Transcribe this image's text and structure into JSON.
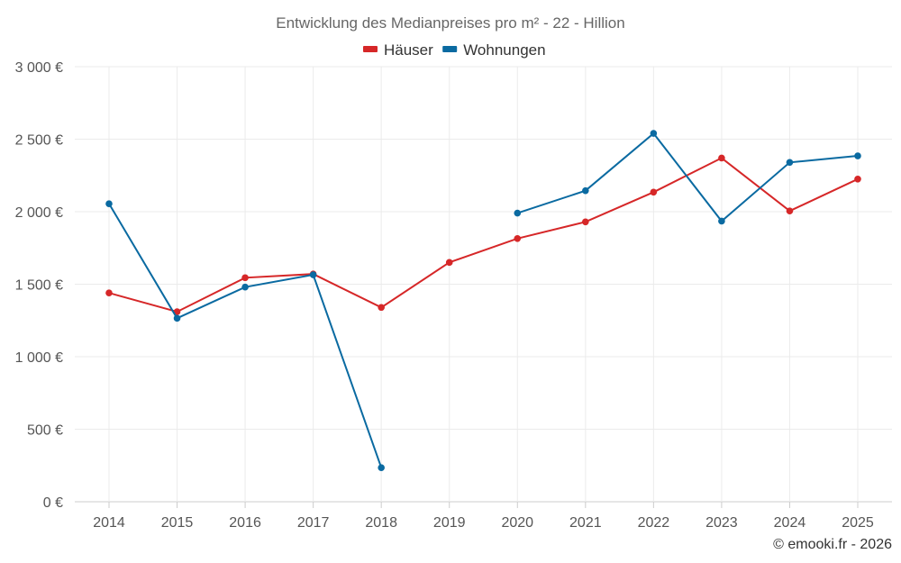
{
  "chart_data": {
    "type": "line",
    "title": "Entwicklung des Medianpreises pro m² - 22 - Hillion",
    "xlabel": "",
    "ylabel": "",
    "categories": [
      "2014",
      "2015",
      "2016",
      "2017",
      "2018",
      "2019",
      "2020",
      "2021",
      "2022",
      "2023",
      "2024",
      "2025"
    ],
    "ylim": [
      0,
      3000
    ],
    "yticks": [
      0,
      500,
      1000,
      1500,
      2000,
      2500,
      3000
    ],
    "ytick_labels": [
      "0 €",
      "500 €",
      "1 000 €",
      "1 500 €",
      "2 000 €",
      "2 500 €",
      "3 000 €"
    ],
    "grid": true,
    "legend_position": "top-center",
    "series": [
      {
        "name": "Häuser",
        "color": "#d62728",
        "values": [
          1440,
          1310,
          1545,
          1570,
          1340,
          1650,
          1815,
          1930,
          2135,
          2370,
          2005,
          2225
        ]
      },
      {
        "name": "Wohnungen",
        "color": "#0a6aa1",
        "values": [
          2055,
          1265,
          1480,
          1565,
          235,
          null,
          1990,
          2145,
          2540,
          1935,
          2340,
          2385
        ]
      }
    ]
  },
  "credit": "© emooki.fr - 2026"
}
